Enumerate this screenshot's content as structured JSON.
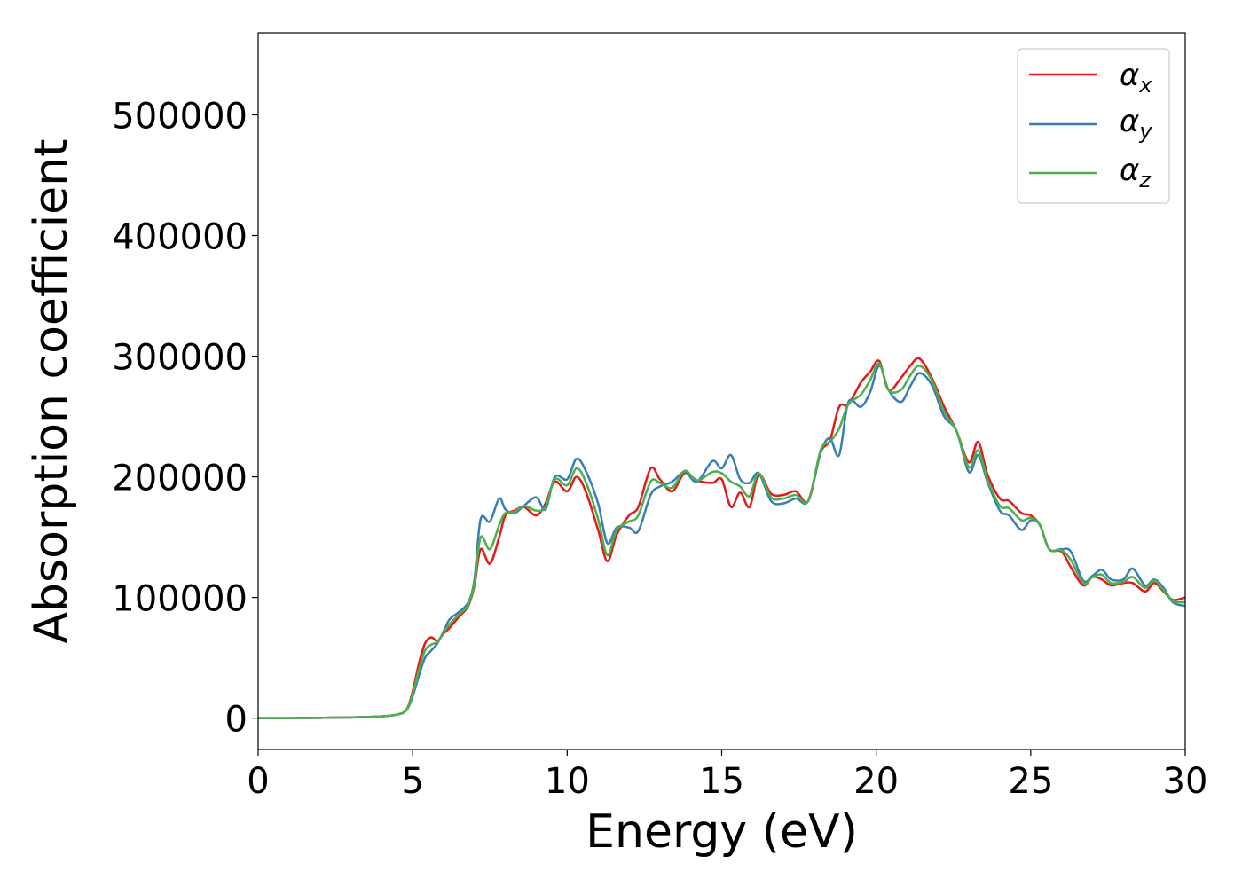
{
  "chart_data": {
    "type": "line",
    "xlabel": "Energy (eV)",
    "ylabel": "Absorption coefficient",
    "xlim": [
      0,
      30
    ],
    "ylim": [
      -26000,
      568000
    ],
    "xticks": [
      "0",
      "5",
      "10",
      "15",
      "20",
      "25",
      "30"
    ],
    "yticks": [
      "0",
      "100000",
      "200000",
      "300000",
      "400000",
      "500000"
    ],
    "grid": false,
    "legend_position": "top-right",
    "x": [
      0,
      1,
      2,
      3,
      4,
      4.5,
      4.8,
      5.0,
      5.2,
      5.4,
      5.6,
      5.8,
      6.0,
      6.2,
      6.5,
      6.8,
      7.0,
      7.2,
      7.5,
      7.8,
      8.0,
      8.3,
      8.6,
      9.0,
      9.3,
      9.6,
      10.0,
      10.3,
      10.6,
      11.0,
      11.3,
      11.6,
      12.0,
      12.3,
      12.7,
      13.0,
      13.4,
      13.8,
      14.2,
      14.7,
      15.0,
      15.3,
      15.6,
      15.9,
      16.2,
      16.6,
      17.0,
      17.4,
      17.8,
      18.2,
      18.5,
      18.8,
      19.1,
      19.5,
      19.8,
      20.1,
      20.4,
      20.8,
      21.1,
      21.4,
      21.8,
      22.2,
      22.6,
      23.0,
      23.3,
      23.6,
      24.0,
      24.3,
      24.7,
      25.0,
      25.3,
      25.6,
      26.0,
      26.3,
      26.7,
      27.0,
      27.3,
      27.6,
      28.0,
      28.3,
      28.7,
      29.0,
      29.3,
      29.6,
      30.0
    ],
    "series": [
      {
        "name": "x",
        "color": "#e41a1c",
        "values": [
          0,
          0,
          200,
          600,
          1500,
          3000,
          7000,
          22000,
          45000,
          62000,
          67000,
          64000,
          70000,
          75000,
          84000,
          93000,
          110000,
          140000,
          128000,
          150000,
          168000,
          172000,
          175000,
          168000,
          178000,
          196000,
          188000,
          200000,
          188000,
          156000,
          130000,
          152000,
          168000,
          175000,
          207000,
          198000,
          188000,
          203000,
          197000,
          195000,
          198000,
          175000,
          187000,
          175000,
          202000,
          186000,
          185000,
          188000,
          180000,
          220000,
          230000,
          258000,
          260000,
          278000,
          287000,
          296000,
          272000,
          282000,
          292000,
          298000,
          282000,
          258000,
          238000,
          212000,
          229000,
          202000,
          182000,
          180000,
          170000,
          168000,
          160000,
          140000,
          138000,
          125000,
          110000,
          117000,
          115000,
          110000,
          112000,
          112000,
          105000,
          112000,
          105000,
          98000,
          100000
        ]
      },
      {
        "name": "y",
        "color": "#377eb8",
        "values": [
          0,
          0,
          200,
          600,
          1500,
          3000,
          6500,
          18000,
          35000,
          50000,
          56000,
          62000,
          72000,
          82000,
          88000,
          96000,
          115000,
          165000,
          163000,
          182000,
          173000,
          170000,
          176000,
          183000,
          173000,
          200000,
          198000,
          215000,
          205000,
          178000,
          145000,
          158000,
          158000,
          155000,
          185000,
          192000,
          196000,
          204000,
          196000,
          213000,
          207000,
          218000,
          198000,
          195000,
          203000,
          180000,
          178000,
          182000,
          180000,
          220000,
          232000,
          218000,
          262000,
          258000,
          270000,
          292000,
          272000,
          262000,
          275000,
          286000,
          276000,
          250000,
          238000,
          204000,
          218000,
          196000,
          172000,
          168000,
          156000,
          164000,
          160000,
          140000,
          140000,
          138000,
          114000,
          118000,
          123000,
          115000,
          115000,
          124000,
          110000,
          115000,
          108000,
          96000,
          93000
        ]
      },
      {
        "name": "z",
        "color": "#4daf4a",
        "values": [
          0,
          0,
          200,
          600,
          1500,
          3000,
          6800,
          20000,
          40000,
          56000,
          61000,
          63000,
          71000,
          78000,
          86000,
          94000,
          112000,
          150000,
          140000,
          160000,
          170000,
          171000,
          176000,
          172000,
          175000,
          198000,
          193000,
          207000,
          196000,
          165000,
          135000,
          156000,
          163000,
          168000,
          196000,
          195000,
          191000,
          205000,
          197000,
          204000,
          203000,
          196000,
          192000,
          184000,
          203000,
          183000,
          182000,
          185000,
          180000,
          222000,
          229000,
          240000,
          260000,
          268000,
          280000,
          294000,
          272000,
          272000,
          284000,
          292000,
          280000,
          254000,
          238000,
          208000,
          222000,
          198000,
          176000,
          174000,
          164000,
          166000,
          160000,
          140000,
          139000,
          131000,
          112000,
          117000,
          119000,
          112000,
          113000,
          117000,
          108000,
          114000,
          106000,
          97000,
          96000
        ]
      }
    ]
  },
  "legend": {
    "items": [
      {
        "symbol": "α",
        "sub": "x",
        "color": "#e41a1c"
      },
      {
        "symbol": "α",
        "sub": "y",
        "color": "#377eb8"
      },
      {
        "symbol": "α",
        "sub": "z",
        "color": "#4daf4a"
      }
    ]
  }
}
